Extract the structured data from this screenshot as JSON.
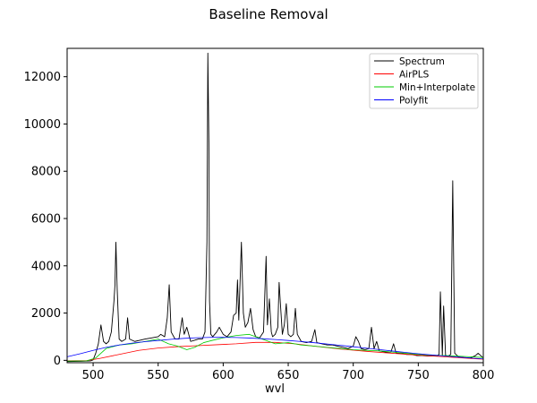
{
  "chart_data": {
    "type": "line",
    "title": "Baseline Removal",
    "xlabel": "wvl",
    "ylabel": "",
    "xlim": [
      480,
      800
    ],
    "ylim": [
      -100,
      13200
    ],
    "xticks": [
      500,
      550,
      600,
      650,
      700,
      750,
      800
    ],
    "yticks": [
      0,
      2000,
      4000,
      6000,
      8000,
      10000,
      12000
    ],
    "grid": false,
    "legend_position": "top-right",
    "series": [
      {
        "name": "Spectrum",
        "color": "#000000",
        "x": [
          480,
          490,
          498,
          500,
          502,
          504,
          505,
          506,
          508,
          510,
          512,
          514,
          516,
          516.8,
          517.5,
          518.5,
          520,
          522,
          525,
          526.5,
          528,
          532,
          536,
          540,
          545,
          550,
          552,
          555,
          557,
          558.5,
          560,
          563,
          566,
          568.5,
          570,
          572,
          575,
          578,
          581,
          584,
          586,
          587.5,
          588.2,
          589,
          589.5,
          590.5,
          592,
          595,
          597,
          600,
          603,
          606,
          608,
          610,
          611,
          612,
          614,
          615.5,
          617,
          619,
          621,
          623,
          625,
          628,
          631,
          633,
          634,
          635.5,
          637,
          638,
          640,
          642,
          643,
          644,
          645.5,
          647,
          648.5,
          650,
          652,
          654,
          655.5,
          657,
          660,
          664,
          668,
          670.5,
          672,
          676,
          680,
          684,
          688,
          692,
          696,
          700,
          702,
          704,
          706,
          709,
          712,
          714,
          716,
          718,
          720,
          725,
          729,
          731,
          733,
          737,
          741,
          745,
          749,
          753,
          757,
          761,
          764,
          766,
          767,
          768.5,
          769.5,
          771,
          773,
          775,
          776.5,
          778,
          781,
          785,
          790,
          794,
          796,
          800
        ],
        "y": [
          -50,
          -40,
          -20,
          20,
          300,
          700,
          1100,
          1500,
          800,
          700,
          800,
          1200,
          2500,
          3200,
          5000,
          3000,
          900,
          800,
          900,
          1800,
          900,
          800,
          850,
          900,
          950,
          1000,
          1100,
          1000,
          1800,
          3200,
          1200,
          900,
          900,
          1800,
          1100,
          1400,
          800,
          850,
          900,
          900,
          1200,
          5000,
          13000,
          9200,
          2500,
          1100,
          1000,
          1200,
          1400,
          1100,
          1000,
          1200,
          1900,
          2000,
          3400,
          1700,
          5000,
          2000,
          1400,
          1600,
          2200,
          1300,
          1000,
          950,
          1200,
          4400,
          1500,
          2600,
          1200,
          1000,
          1100,
          1400,
          3300,
          2400,
          1100,
          1500,
          2400,
          1100,
          1000,
          1100,
          2200,
          1100,
          800,
          750,
          800,
          1300,
          750,
          700,
          650,
          650,
          600,
          550,
          500,
          600,
          1000,
          800,
          500,
          450,
          500,
          1400,
          500,
          800,
          400,
          350,
          350,
          700,
          300,
          300,
          250,
          250,
          200,
          200,
          180,
          180,
          180,
          250,
          2900,
          200,
          2300,
          200,
          180,
          250,
          7600,
          300,
          150,
          120,
          100,
          200,
          300,
          100
        ]
      },
      {
        "name": "AirPLS",
        "color": "#ff0000",
        "x": [
          480,
          495,
          505,
          520,
          535,
          550,
          565,
          580,
          595,
          610,
          625,
          640,
          655,
          670,
          690,
          710,
          730,
          750,
          770,
          790,
          800
        ],
        "y": [
          -20,
          -10,
          80,
          250,
          420,
          520,
          580,
          620,
          660,
          700,
          760,
          760,
          700,
          600,
          480,
          380,
          300,
          220,
          150,
          80,
          50
        ]
      },
      {
        "name": "Min+Interpolate",
        "color": "#00cc00",
        "x": [
          480,
          495,
          502,
          510,
          520,
          530,
          540,
          550,
          558,
          565,
          572,
          578,
          585,
          592,
          600,
          610,
          620,
          630,
          640,
          650,
          660,
          670,
          680,
          690,
          700,
          710,
          720,
          730,
          740,
          750,
          760,
          770,
          780,
          790,
          800
        ],
        "y": [
          -30,
          -20,
          100,
          500,
          650,
          700,
          800,
          900,
          700,
          600,
          450,
          550,
          750,
          850,
          950,
          1050,
          1100,
          900,
          700,
          750,
          650,
          600,
          550,
          500,
          450,
          420,
          400,
          350,
          300,
          250,
          220,
          200,
          180,
          150,
          120
        ]
      },
      {
        "name": "Polyfit",
        "color": "#0000ff",
        "x": [
          480,
          490,
          500,
          510,
          520,
          530,
          540,
          550,
          560,
          570,
          580,
          590,
          600,
          610,
          620,
          630,
          640,
          650,
          660,
          670,
          680,
          690,
          700,
          710,
          720,
          730,
          740,
          750,
          760,
          770,
          780,
          790,
          800
        ],
        "y": [
          150,
          280,
          420,
          550,
          650,
          730,
          790,
          840,
          890,
          930,
          955,
          970,
          975,
          965,
          945,
          915,
          880,
          840,
          795,
          745,
          690,
          635,
          575,
          515,
          455,
          395,
          335,
          280,
          230,
          185,
          140,
          100,
          60
        ]
      }
    ]
  }
}
